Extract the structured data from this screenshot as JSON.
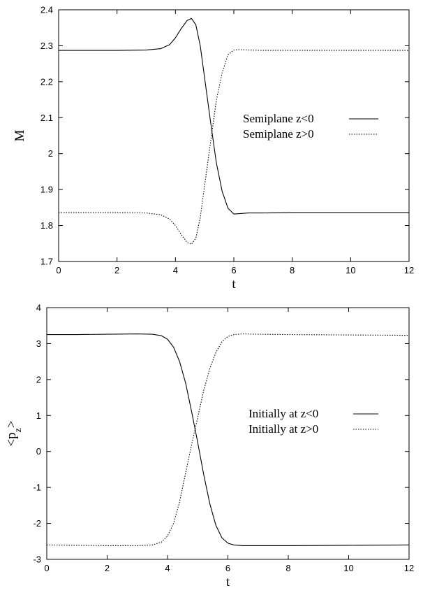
{
  "chart_data": [
    {
      "type": "line",
      "title": "",
      "xlabel": "t",
      "ylabel": "M",
      "xlim": [
        0,
        12
      ],
      "ylim": [
        1.7,
        2.4
      ],
      "xticks": [
        "0",
        "2",
        "4",
        "6",
        "8",
        "10",
        "12"
      ],
      "yticks": [
        "1.7",
        "1.8",
        "1.9",
        "2",
        "2.1",
        "2.2",
        "2.3",
        "2.4"
      ],
      "grid": false,
      "legend_position": "right",
      "series": [
        {
          "name": "Semiplane z<0",
          "style": "solid",
          "color": "#000000",
          "x": [
            0,
            1,
            2,
            3,
            3.5,
            3.8,
            4.0,
            4.2,
            4.4,
            4.55,
            4.7,
            4.85,
            5.0,
            5.2,
            5.4,
            5.6,
            5.8,
            6.0,
            6.2,
            6.5,
            7,
            8,
            10,
            12
          ],
          "y": [
            2.287,
            2.287,
            2.287,
            2.288,
            2.292,
            2.303,
            2.322,
            2.348,
            2.37,
            2.376,
            2.358,
            2.3,
            2.21,
            2.09,
            1.975,
            1.895,
            1.848,
            1.832,
            1.833,
            1.835,
            1.835,
            1.836,
            1.836,
            1.836
          ]
        },
        {
          "name": "Semiplane z>0",
          "style": "dotted",
          "color": "#000000",
          "x": [
            0,
            1,
            2,
            3,
            3.5,
            3.8,
            4.0,
            4.2,
            4.4,
            4.55,
            4.7,
            4.85,
            5.0,
            5.2,
            5.4,
            5.6,
            5.8,
            6.0,
            6.2,
            6.5,
            7,
            8,
            10,
            12
          ],
          "y": [
            1.836,
            1.836,
            1.836,
            1.835,
            1.83,
            1.818,
            1.8,
            1.775,
            1.753,
            1.748,
            1.765,
            1.822,
            1.912,
            2.03,
            2.148,
            2.225,
            2.275,
            2.288,
            2.289,
            2.288,
            2.287,
            2.287,
            2.287,
            2.287
          ]
        }
      ]
    },
    {
      "type": "line",
      "title": "",
      "xlabel": "t",
      "ylabel": "<p_z>",
      "xlim": [
        0,
        12
      ],
      "ylim": [
        -3,
        4
      ],
      "xticks": [
        "0",
        "2",
        "4",
        "6",
        "8",
        "10",
        "12"
      ],
      "yticks": [
        "-3",
        "-2",
        "-1",
        "0",
        "1",
        "2",
        "3",
        "4"
      ],
      "grid": false,
      "legend_position": "right",
      "series": [
        {
          "name": "Initially at z<0",
          "style": "solid",
          "color": "#000000",
          "x": [
            0,
            1,
            2,
            3,
            3.5,
            3.8,
            4.0,
            4.2,
            4.4,
            4.6,
            4.8,
            5.0,
            5.2,
            5.4,
            5.6,
            5.8,
            6.0,
            6.2,
            6.5,
            7,
            8,
            10,
            12
          ],
          "y": [
            3.25,
            3.25,
            3.26,
            3.27,
            3.26,
            3.22,
            3.12,
            2.9,
            2.5,
            1.9,
            1.1,
            0.25,
            -0.65,
            -1.45,
            -2.05,
            -2.4,
            -2.55,
            -2.6,
            -2.62,
            -2.62,
            -2.62,
            -2.61,
            -2.6
          ]
        },
        {
          "name": "Initially at z>0",
          "style": "dotted",
          "color": "#000000",
          "x": [
            0,
            1,
            2,
            3,
            3.5,
            3.8,
            4.0,
            4.2,
            4.4,
            4.6,
            4.8,
            5.0,
            5.2,
            5.4,
            5.6,
            5.8,
            6.0,
            6.2,
            6.5,
            7,
            8,
            10,
            12
          ],
          "y": [
            -2.6,
            -2.61,
            -2.62,
            -2.62,
            -2.6,
            -2.52,
            -2.35,
            -2.0,
            -1.4,
            -0.6,
            0.2,
            0.95,
            1.7,
            2.3,
            2.75,
            3.05,
            3.2,
            3.25,
            3.27,
            3.26,
            3.25,
            3.24,
            3.23
          ]
        }
      ]
    }
  ]
}
